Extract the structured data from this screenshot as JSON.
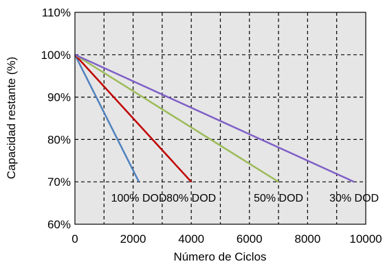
{
  "chart_data": {
    "type": "line",
    "xlabel": "Número de Ciclos",
    "ylabel": "Capacidad restante (%)",
    "xlim": [
      0,
      10000
    ],
    "ylim": [
      60,
      110
    ],
    "x_ticks": [
      0,
      2000,
      4000,
      6000,
      8000,
      10000
    ],
    "x_tick_labels": [
      "0",
      "2000",
      "4000",
      "6000",
      "8000",
      "10000"
    ],
    "y_ticks": [
      60,
      70,
      80,
      90,
      100,
      110
    ],
    "y_tick_labels": [
      "60%",
      "70%",
      "80%",
      "90%",
      "100%",
      "110%"
    ],
    "grid": true,
    "plot_background": "#e6e6e6",
    "series": [
      {
        "name": "100% DOD",
        "color": "#4f81bd",
        "x": [
          0,
          2200
        ],
        "y": [
          100,
          70
        ]
      },
      {
        "name": "80% DOD",
        "color": "#c00000",
        "x": [
          0,
          4000
        ],
        "y": [
          100,
          70
        ]
      },
      {
        "name": "50% DOD",
        "color": "#9bbb59",
        "x": [
          0,
          7000
        ],
        "y": [
          100,
          70
        ]
      },
      {
        "name": "30% DOD",
        "color": "#7f5fc7",
        "x": [
          0,
          9600
        ],
        "y": [
          100,
          70
        ]
      }
    ]
  }
}
